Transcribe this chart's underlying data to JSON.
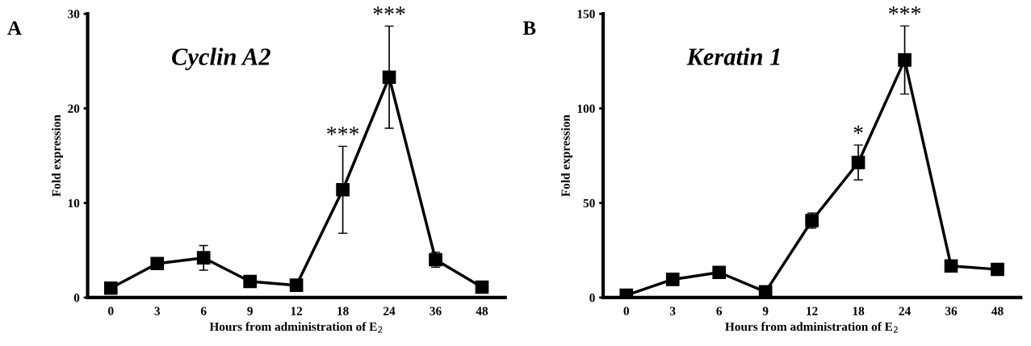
{
  "chart_data": [
    {
      "type": "line",
      "title": "Cyclin A2",
      "xlabel": "Hours from administration of E$_{2}$",
      "ylabel": "Fold expression",
      "categories": [
        "0",
        "3",
        "6",
        "9",
        "12",
        "18",
        "24",
        "36",
        "48"
      ],
      "series": [
        {
          "color": "#000000",
          "values": [
            1.0,
            3.6,
            4.2,
            1.7,
            1.3,
            11.4,
            23.3,
            4.0,
            1.1
          ],
          "errors": [
            null,
            0.3,
            1.3,
            null,
            null,
            4.6,
            5.4,
            0.8,
            null
          ]
        }
      ],
      "ylim": [
        0,
        30
      ],
      "yticks": [
        0,
        10,
        20,
        30
      ],
      "marker": "square",
      "line_style": "solid",
      "grid": false,
      "legend": false,
      "annotations": [
        "A",
        {
          "text": "***",
          "x": "18",
          "y": 11.4
        },
        {
          "text": "***",
          "x": "24",
          "y": 23.3
        }
      ]
    },
    {
      "type": "line",
      "title": "Keratin 1",
      "xlabel": "Hours from administration of E$_{2}$",
      "ylabel": "Fold expression",
      "categories": [
        "0",
        "3",
        "6",
        "9",
        "12",
        "18",
        "24",
        "36",
        "48"
      ],
      "series": [
        {
          "color": "#000000",
          "values": [
            1.2,
            9.6,
            13.3,
            3.0,
            40.7,
            71.4,
            125.6,
            16.7,
            14.9
          ],
          "errors": [
            null,
            null,
            null,
            null,
            4.0,
            9.2,
            18.0,
            null,
            null
          ]
        }
      ],
      "ylim": [
        0,
        150
      ],
      "yticks": [
        0,
        50,
        100,
        150
      ],
      "marker": "square",
      "line_style": "solid",
      "grid": false,
      "legend": false,
      "annotations": [
        "B",
        {
          "text": "*",
          "x": "18",
          "y": 71.4
        },
        {
          "text": "***",
          "x": "24",
          "y": 125.6
        }
      ]
    }
  ]
}
